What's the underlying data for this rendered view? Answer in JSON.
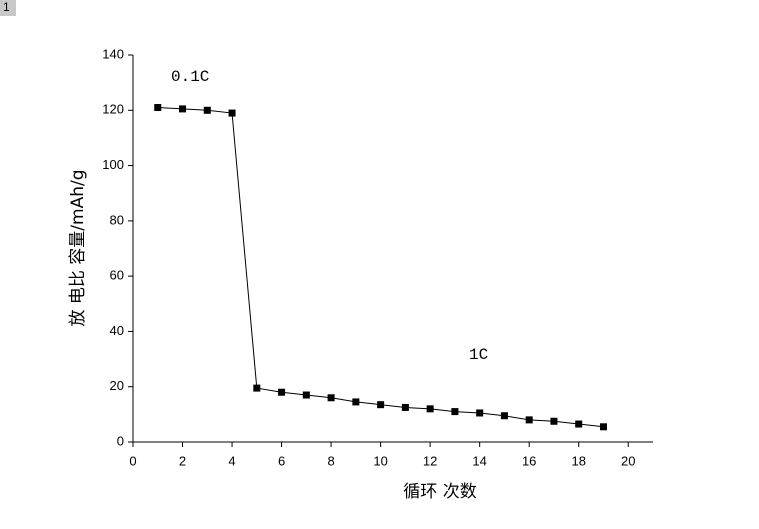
{
  "tag": "1",
  "chart_data": {
    "type": "line",
    "x_label": "循环 次数",
    "y_label": "放 电比 容量/mAh/g",
    "annotations": [
      "0.1C",
      "1C"
    ],
    "x": [
      1,
      2,
      3,
      4,
      5,
      6,
      7,
      8,
      9,
      10,
      11,
      12,
      13,
      14,
      15,
      16,
      17,
      18,
      19
    ],
    "values": [
      121,
      120.5,
      120,
      119,
      19.5,
      18,
      17,
      16,
      14.5,
      13.5,
      12.5,
      12,
      11,
      10.5,
      9.5,
      8,
      7.5,
      6.5,
      5.5
    ],
    "color": "#000000",
    "marker": "square",
    "xlim": [
      0,
      21
    ],
    "xticks": [
      0,
      2,
      4,
      6,
      8,
      10,
      12,
      14,
      16,
      18,
      20
    ],
    "ylim": [
      0,
      140
    ],
    "yticks": [
      0,
      20,
      40,
      60,
      80,
      100,
      120,
      140
    ],
    "grid": false
  }
}
